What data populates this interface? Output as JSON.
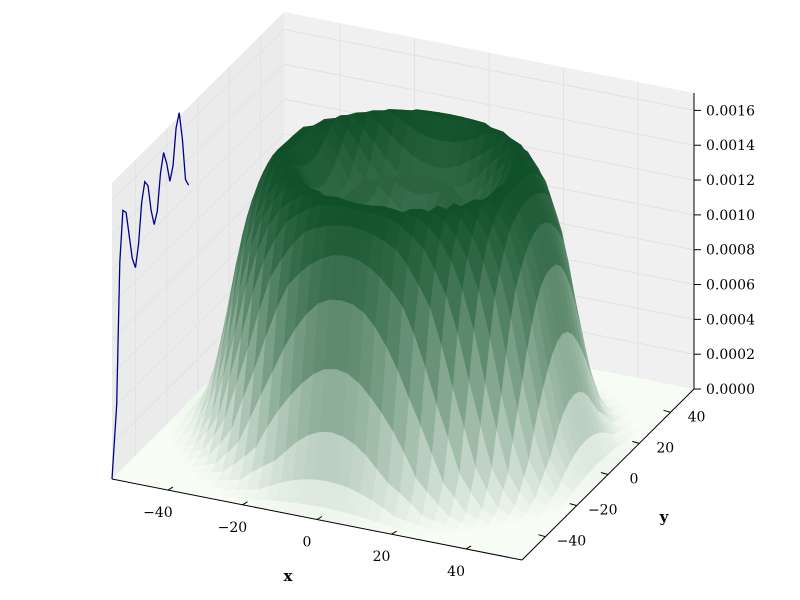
{
  "chart_data": {
    "type": "surface3d",
    "title": "",
    "xlabel": "x",
    "ylabel": "y",
    "zlabel": "",
    "colormap": "Greens",
    "xlim": [
      -55,
      55
    ],
    "ylim": [
      -55,
      55
    ],
    "zlim": [
      0,
      0.0017
    ],
    "x_ticks": [
      "−40",
      "−20",
      "0",
      "20",
      "40"
    ],
    "y_ticks": [
      "−40",
      "−20",
      "0",
      "20",
      "40"
    ],
    "z_ticks": [
      "0.0000",
      "0.0002",
      "0.0004",
      "0.0006",
      "0.0008",
      "0.0010",
      "0.0012",
      "0.0014",
      "0.0016"
    ],
    "surface_description": "Annular ring-shaped intensity profile: plateau peaking near radius 28 with secondary inner ring near radius 12, falling to zero by radius ~50",
    "radial_profile": {
      "r": [
        0,
        5,
        10,
        13,
        16,
        20,
        24,
        28,
        32,
        36,
        40,
        44,
        48,
        52,
        56
      ],
      "z": [
        0.0011,
        0.00115,
        0.00132,
        0.00138,
        0.00128,
        0.00128,
        0.00145,
        0.00158,
        0.00155,
        0.0014,
        0.0011,
        0.0006,
        0.0002,
        4e-05,
        0.0
      ]
    },
    "series": [
      {
        "kind": "projected_line",
        "color": "#00008b",
        "x": [
          -55,
          -52,
          -50,
          -48,
          -46,
          -44,
          -42,
          -40,
          -38,
          -36,
          -34,
          -32,
          -30,
          -28,
          -26,
          -24,
          -22,
          -20,
          -18,
          -16,
          -14,
          -12,
          -10,
          -8,
          -6
        ],
        "z": [
          0.0,
          0.0004,
          0.0012,
          0.00148,
          0.00145,
          0.0013,
          0.00115,
          0.00108,
          0.0012,
          0.00142,
          0.00152,
          0.00148,
          0.00132,
          0.00122,
          0.00128,
          0.00148,
          0.00158,
          0.0015,
          0.00138,
          0.00145,
          0.00165,
          0.00172,
          0.00155,
          0.0013,
          0.00125
        ]
      }
    ]
  }
}
